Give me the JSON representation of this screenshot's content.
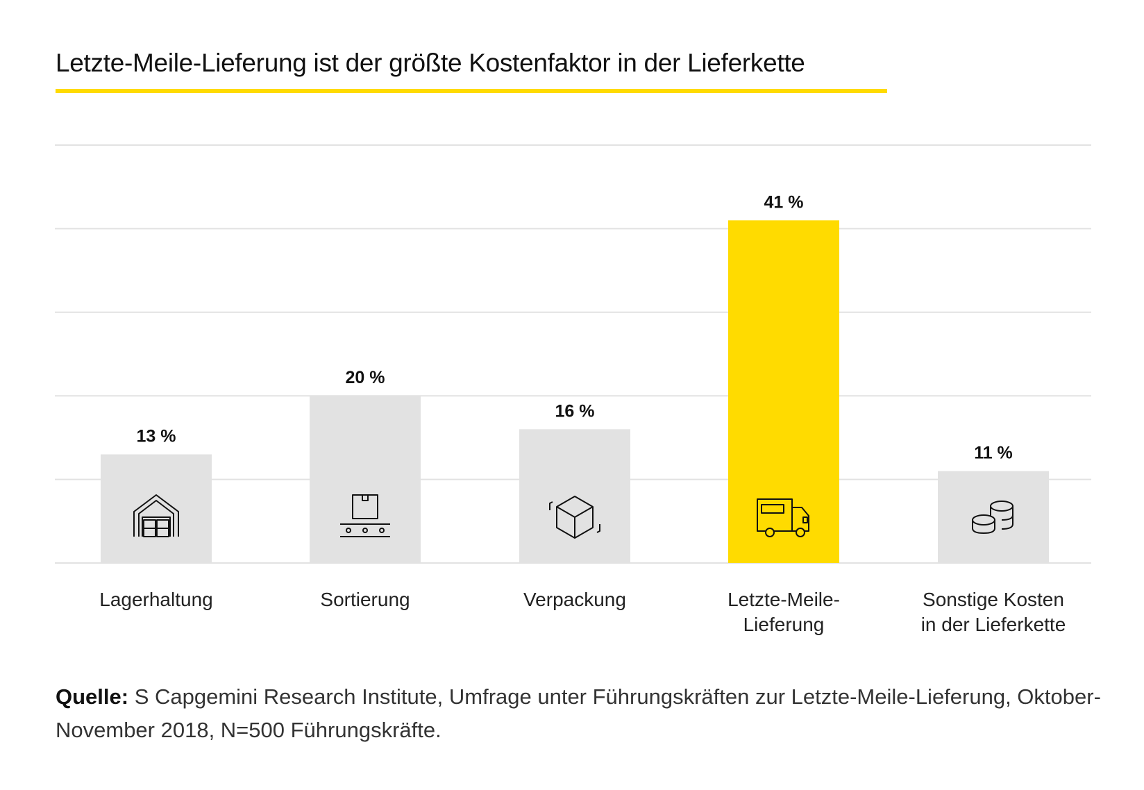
{
  "title": "Letzte-Meile-Lieferung ist der größte Kostenfaktor in der Lieferkette",
  "colors": {
    "accent": "#FFDB00",
    "bar": "#E2E2E2",
    "grid": "#E2E2E2",
    "text": "#111111"
  },
  "chart_data": {
    "type": "bar",
    "title": "Letzte-Meile-Lieferung ist der größte Kostenfaktor in der Lieferkette",
    "categories": [
      "Lagerhaltung",
      "Sortierung",
      "Verpackung",
      "Letzte-Meile-Lieferung",
      "Sonstige Kosten in der Lieferkette"
    ],
    "category_lines": [
      [
        "Lagerhaltung"
      ],
      [
        "Sortierung"
      ],
      [
        "Verpackung"
      ],
      [
        "Letzte-Meile-",
        "Lieferung"
      ],
      [
        "Sonstige Kosten",
        "in der Lieferkette"
      ]
    ],
    "values": [
      13,
      20,
      16,
      41,
      11
    ],
    "data_labels": [
      "13 %",
      "20 %",
      "16 %",
      "41 %",
      "11 %"
    ],
    "highlight_index": 3,
    "icons": [
      "warehouse-icon",
      "conveyor-box-icon",
      "package-cube-icon",
      "delivery-truck-icon",
      "coins-icon"
    ],
    "unit": "%",
    "ylim": [
      0,
      50
    ],
    "grid_step": 10,
    "grid": true,
    "xlabel": "",
    "ylabel": ""
  },
  "source": {
    "label": "Quelle:",
    "text": " S Capgemini Research Institute, Umfrage unter Führungskräften zur Letzte-Meile-Lieferung, Oktober-November 2018, N=500 Führungskräfte."
  }
}
